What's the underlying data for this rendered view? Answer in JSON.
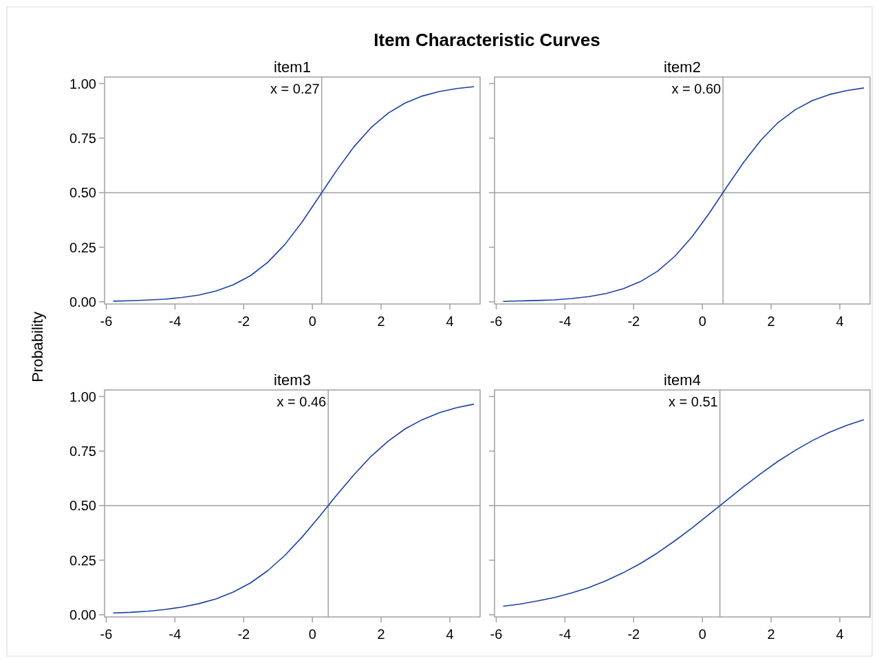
{
  "chart_data": [
    {
      "type": "line",
      "title": "Item Characteristic Curves",
      "subtitle": "item1",
      "ylabel": "Probability",
      "x": [
        -5.8,
        -5.3,
        -4.8,
        -4.3,
        -3.8,
        -3.3,
        -2.8,
        -2.3,
        -1.8,
        -1.3,
        -0.8,
        -0.3,
        0.2,
        0.7,
        1.2,
        1.7,
        2.2,
        2.7,
        3.2,
        3.7,
        4.2,
        4.7
      ],
      "series": [
        {
          "color": "#1a3fa6",
          "values": [
            0.003,
            0.005,
            0.008,
            0.012,
            0.02,
            0.031,
            0.05,
            0.078,
            0.12,
            0.181,
            0.263,
            0.366,
            0.483,
            0.601,
            0.709,
            0.797,
            0.864,
            0.911,
            0.943,
            0.964,
            0.977,
            0.986
          ]
        }
      ],
      "xlim": [
        -6.05,
        4.88
      ],
      "ylim": [
        -0.01,
        1.03
      ],
      "xticks": [
        -6,
        -4,
        -2,
        0,
        2,
        4
      ],
      "yticks": [
        {
          "value": 0,
          "label": "0.00"
        },
        {
          "value": 0.25,
          "label": "0.25"
        },
        {
          "value": 0.5,
          "label": "0.50"
        },
        {
          "value": 0.75,
          "label": "0.75"
        },
        {
          "value": 1,
          "label": "1.00"
        }
      ],
      "ref_lines": [
        {
          "axis": "x",
          "value": 0.27,
          "label": "x = 0.27",
          "color": "#a0a0a0"
        },
        {
          "axis": "y",
          "value": 0.5,
          "color": "#a0a0a0"
        }
      ],
      "grid": false
    },
    {
      "type": "line",
      "subtitle": "item2",
      "x": [
        -5.8,
        -5.3,
        -4.8,
        -4.3,
        -3.8,
        -3.3,
        -2.8,
        -2.3,
        -1.8,
        -1.3,
        -0.8,
        -0.3,
        0.2,
        0.7,
        1.2,
        1.7,
        2.2,
        2.7,
        3.2,
        3.7,
        4.2,
        4.7
      ],
      "series": [
        {
          "color": "#1a3fa6",
          "values": [
            0.002,
            0.004,
            0.006,
            0.009,
            0.015,
            0.024,
            0.038,
            0.06,
            0.093,
            0.141,
            0.209,
            0.298,
            0.406,
            0.524,
            0.639,
            0.74,
            0.821,
            0.88,
            0.922,
            0.95,
            0.968,
            0.98
          ]
        }
      ],
      "xlim": [
        -6.05,
        4.88
      ],
      "ylim": [
        -0.01,
        1.03
      ],
      "xticks": [
        -6,
        -4,
        -2,
        0,
        2,
        4
      ],
      "yticks": [
        0,
        0.25,
        0.5,
        0.75,
        1
      ],
      "tick_labels": "x",
      "ref_lines": [
        {
          "axis": "x",
          "value": 0.6,
          "label": "x = 0.60",
          "color": "#a0a0a0"
        },
        {
          "axis": "y",
          "value": 0.5,
          "color": "#a0a0a0"
        }
      ],
      "grid": false
    },
    {
      "type": "line",
      "subtitle": "item3",
      "x": [
        -5.8,
        -5.3,
        -4.8,
        -4.3,
        -3.8,
        -3.3,
        -2.8,
        -2.3,
        -1.8,
        -1.3,
        -0.8,
        -0.3,
        0.2,
        0.7,
        1.2,
        1.7,
        2.2,
        2.7,
        3.2,
        3.7,
        4.2,
        4.7
      ],
      "series": [
        {
          "color": "#1a3fa6",
          "values": [
            0.008,
            0.011,
            0.016,
            0.024,
            0.035,
            0.051,
            0.073,
            0.104,
            0.146,
            0.202,
            0.272,
            0.356,
            0.449,
            0.547,
            0.64,
            0.725,
            0.795,
            0.852,
            0.894,
            0.926,
            0.949,
            0.965
          ]
        }
      ],
      "xlim": [
        -6.05,
        4.88
      ],
      "ylim": [
        -0.01,
        1.03
      ],
      "xticks": [
        -6,
        -4,
        -2,
        0,
        2,
        4
      ],
      "yticks": [
        {
          "value": 0,
          "label": "0.00"
        },
        {
          "value": 0.25,
          "label": "0.25"
        },
        {
          "value": 0.5,
          "label": "0.50"
        },
        {
          "value": 0.75,
          "label": "0.75"
        },
        {
          "value": 1,
          "label": "1.00"
        }
      ],
      "ref_lines": [
        {
          "axis": "x",
          "value": 0.46,
          "label": "x = 0.46",
          "color": "#a0a0a0"
        },
        {
          "axis": "y",
          "value": 0.5,
          "color": "#a0a0a0"
        }
      ],
      "grid": false
    },
    {
      "type": "line",
      "subtitle": "item4",
      "x": [
        -5.8,
        -5.3,
        -4.8,
        -4.3,
        -3.8,
        -3.3,
        -2.8,
        -2.3,
        -1.8,
        -1.3,
        -0.8,
        -0.3,
        0.2,
        0.7,
        1.2,
        1.7,
        2.2,
        2.7,
        3.2,
        3.7,
        4.2,
        4.7
      ],
      "series": [
        {
          "color": "#1a3fa6",
          "values": [
            0.039,
            0.049,
            0.063,
            0.079,
            0.1,
            0.125,
            0.156,
            0.193,
            0.235,
            0.284,
            0.339,
            0.398,
            0.461,
            0.524,
            0.587,
            0.647,
            0.703,
            0.753,
            0.798,
            0.836,
            0.868,
            0.894
          ]
        }
      ],
      "xlim": [
        -6.05,
        4.88
      ],
      "ylim": [
        -0.01,
        1.03
      ],
      "xticks": [
        -6,
        -4,
        -2,
        0,
        2,
        4
      ],
      "yticks": [
        0,
        0.25,
        0.5,
        0.75,
        1
      ],
      "tick_labels": "x",
      "ref_lines": [
        {
          "axis": "x",
          "value": 0.51,
          "label": "x = 0.51",
          "color": "#a0a0a0"
        },
        {
          "axis": "y",
          "value": 0.5,
          "color": "#a0a0a0"
        }
      ],
      "grid": false
    }
  ]
}
